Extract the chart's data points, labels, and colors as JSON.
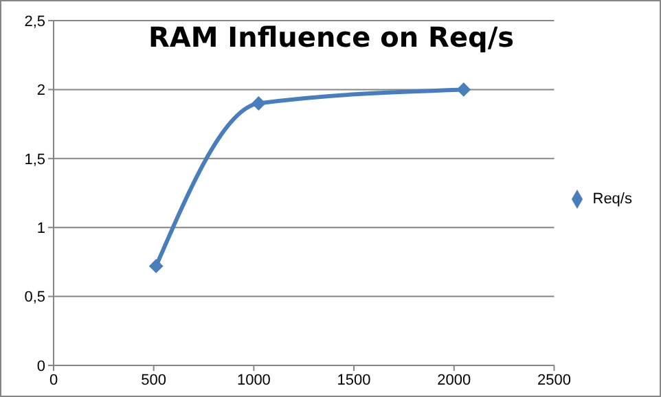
{
  "chart_data": {
    "type": "line",
    "title": "RAM Influence on Req/s",
    "x": [
      512,
      1024,
      2048
    ],
    "series": [
      {
        "name": "Req/s",
        "color": "#4a7ebb",
        "values": [
          0.72,
          1.9,
          2.0
        ]
      }
    ],
    "xlim": [
      0,
      2500
    ],
    "xticks": [
      0,
      500,
      1000,
      1500,
      2000,
      2500
    ],
    "ylim": [
      0,
      2.5
    ],
    "yticks": [
      0,
      {
        "value": 0.5,
        "label": "0,5"
      },
      1,
      {
        "value": 1.5,
        "label": "1,5"
      },
      2,
      {
        "value": 2.5,
        "label": "2,5"
      }
    ],
    "grid": "y",
    "legend": "right",
    "marker": "diamond",
    "line_style": "solid"
  }
}
